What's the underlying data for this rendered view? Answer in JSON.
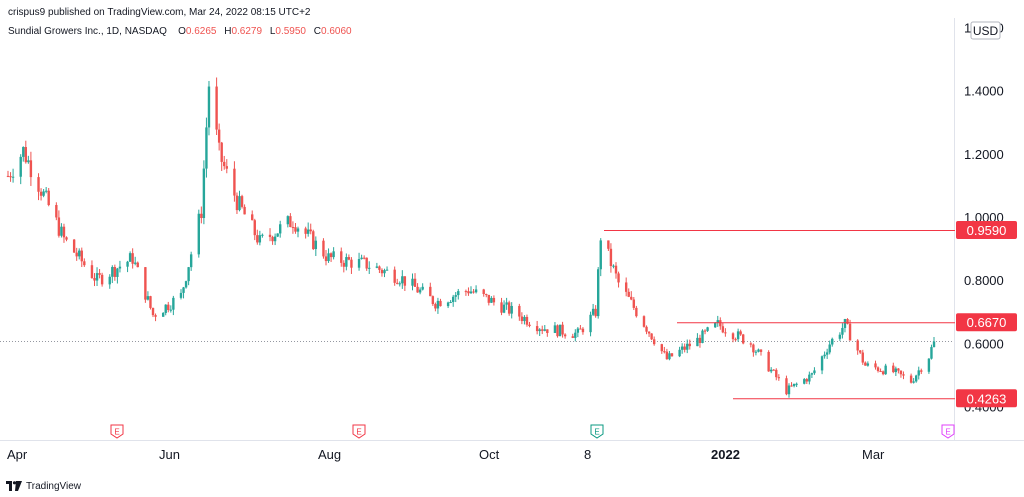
{
  "header": {
    "published_by": "crispus9 published on TradingView.com, Mar 24, 2022 08:15 UTC+2",
    "symbol_info": "Sundial Growers Inc., 1D, NASDAQ",
    "ohlc": [
      {
        "label": "O",
        "value": "0.6265"
      },
      {
        "label": "H",
        "value": "0.6279"
      },
      {
        "label": "L",
        "value": "0.5950"
      },
      {
        "label": "C",
        "value": "0.6060"
      }
    ]
  },
  "footer": {
    "brand": "TradingView"
  },
  "colors": {
    "up": "#26a69a",
    "down": "#ef5350",
    "level_line": "#f23645",
    "axis_text": "#131722",
    "earnings_red": "#f23645",
    "earnings_teal": "#089981",
    "earnings_pink": "#e040fb"
  },
  "chart_data": {
    "type": "candlestick",
    "currency": "USD",
    "y_axis": {
      "ticks": [
        "1.6000",
        "1.4000",
        "1.2000",
        "1.0000",
        "0.8000",
        "0.6000",
        "0.4000"
      ],
      "range": [
        0.36,
        1.62
      ]
    },
    "x_axis": {
      "labels": [
        "Apr",
        "Jun",
        "Aug",
        "Oct",
        "8",
        "2022",
        "Mar"
      ],
      "bold_labels": [
        "2022"
      ]
    },
    "current_price": 0.606,
    "levels": [
      {
        "label": "0.9590",
        "value": 0.959
      },
      {
        "label": "0.6670",
        "value": 0.667
      },
      {
        "label": "0.4263",
        "value": 0.4263
      }
    ],
    "earnings_markers": [
      {
        "label": "E",
        "style": "red"
      },
      {
        "label": "E",
        "style": "red"
      },
      {
        "label": "E",
        "style": "teal"
      },
      {
        "label": "E",
        "style": "pink"
      }
    ],
    "key_closes": [
      {
        "date": "2021-03-24",
        "close": 1.13
      },
      {
        "date": "2021-03-30",
        "close": 1.21
      },
      {
        "date": "2021-04-15",
        "close": 0.93
      },
      {
        "date": "2021-04-28",
        "close": 0.8
      },
      {
        "date": "2021-05-12",
        "close": 0.87
      },
      {
        "date": "2021-05-20",
        "close": 0.69
      },
      {
        "date": "2021-05-31",
        "close": 0.75
      },
      {
        "date": "2021-06-08",
        "close": 1.02
      },
      {
        "date": "2021-06-11",
        "close": 1.42
      },
      {
        "date": "2021-06-15",
        "close": 1.2
      },
      {
        "date": "2021-06-22",
        "close": 1.05
      },
      {
        "date": "2021-07-01",
        "close": 0.92
      },
      {
        "date": "2021-07-14",
        "close": 0.99
      },
      {
        "date": "2021-07-28",
        "close": 0.87
      },
      {
        "date": "2021-08-12",
        "close": 0.85
      },
      {
        "date": "2021-08-25",
        "close": 0.81
      },
      {
        "date": "2021-09-08",
        "close": 0.73
      },
      {
        "date": "2021-09-21",
        "close": 0.77
      },
      {
        "date": "2021-10-06",
        "close": 0.71
      },
      {
        "date": "2021-10-20",
        "close": 0.65
      },
      {
        "date": "2021-11-03",
        "close": 0.63
      },
      {
        "date": "2021-11-10",
        "close": 0.7
      },
      {
        "date": "2021-11-12",
        "close": 0.94
      },
      {
        "date": "2021-11-19",
        "close": 0.79
      },
      {
        "date": "2021-11-30",
        "close": 0.65
      },
      {
        "date": "2021-12-08",
        "close": 0.55
      },
      {
        "date": "2021-12-20",
        "close": 0.61
      },
      {
        "date": "2021-12-28",
        "close": 0.66
      },
      {
        "date": "2022-01-10",
        "close": 0.6
      },
      {
        "date": "2022-01-24",
        "close": 0.45
      },
      {
        "date": "2022-02-03",
        "close": 0.5
      },
      {
        "date": "2022-02-10",
        "close": 0.6
      },
      {
        "date": "2022-02-16",
        "close": 0.66
      },
      {
        "date": "2022-02-24",
        "close": 0.53
      },
      {
        "date": "2022-03-07",
        "close": 0.51
      },
      {
        "date": "2022-03-14",
        "close": 0.48
      },
      {
        "date": "2022-03-21",
        "close": 0.56
      },
      {
        "date": "2022-03-23",
        "close": 0.606
      }
    ]
  }
}
